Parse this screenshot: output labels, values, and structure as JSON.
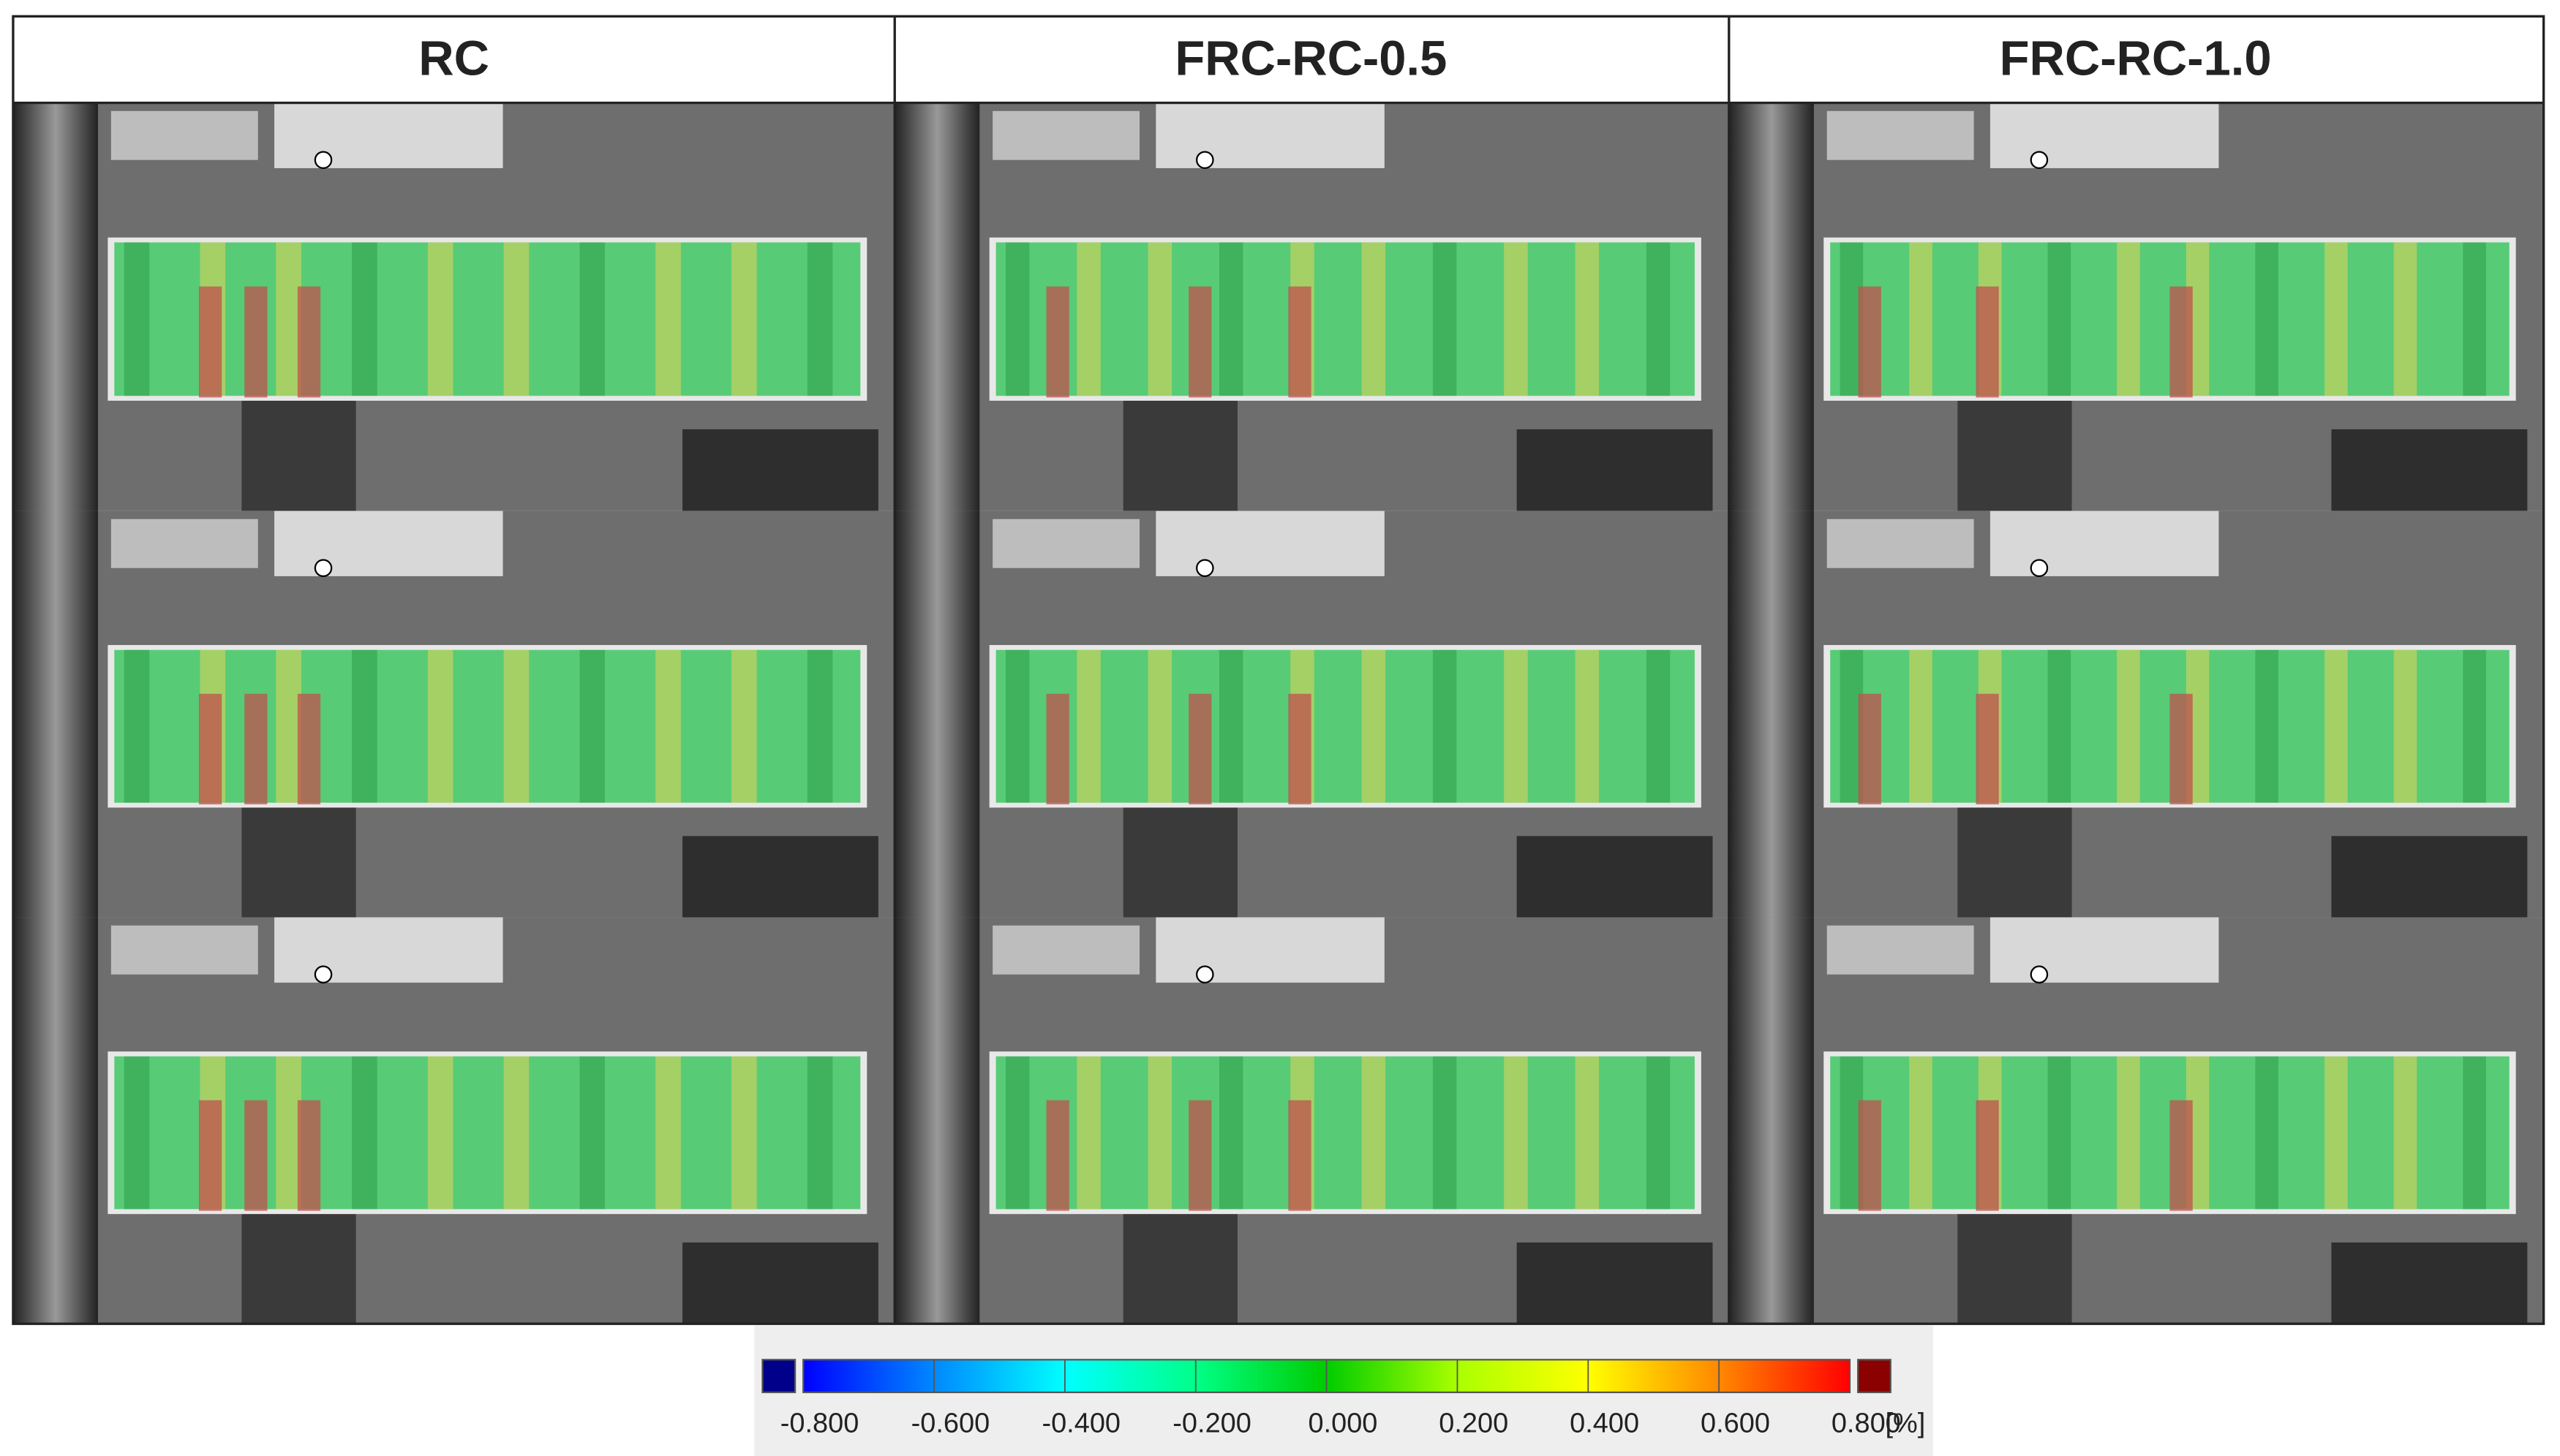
{
  "headers": [
    "RC",
    "FRC-RC-0.5",
    "FRC-RC-1.0"
  ],
  "colorbar": {
    "range": [
      -0.8,
      0.8
    ],
    "ticks": [
      {
        "value": -0.8,
        "label": "-0.800"
      },
      {
        "value": -0.6,
        "label": "-0.600"
      },
      {
        "value": -0.4,
        "label": "-0.400"
      },
      {
        "value": -0.2,
        "label": "-0.200"
      },
      {
        "value": 0,
        "label": "0.000"
      },
      {
        "value": 0.2,
        "label": "0.200"
      },
      {
        "value": 0.4,
        "label": "0.400"
      },
      {
        "value": 0.6,
        "label": "0.600"
      },
      {
        "value": 0.8,
        "label": "0.800"
      }
    ],
    "unit": "[%]",
    "colors": [
      "#0000ff",
      "#0088ff",
      "#00ffff",
      "#00ff88",
      "#00cc00",
      "#aaff00",
      "#ffff00",
      "#ff8800",
      "#ff0000"
    ],
    "under_color": "#00008b",
    "over_color": "#8b0000"
  }
}
